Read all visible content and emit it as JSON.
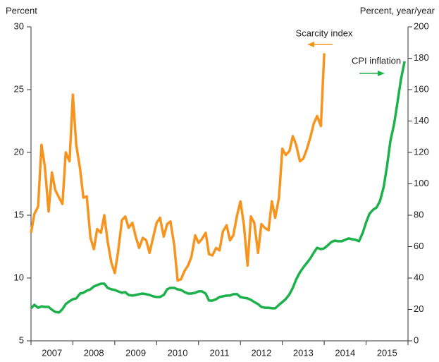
{
  "chart_data": {
    "type": "line",
    "y_label": "Percent",
    "y2_label": "Percent, year/year",
    "annotations": [
      "Scarcity index",
      "CPI inflation"
    ],
    "xlim": [
      2007,
      2016
    ],
    "xticks": [
      2007,
      2008,
      2009,
      2010,
      2011,
      2012,
      2013,
      2014,
      2015,
      2016
    ],
    "x_labels": [
      "2007",
      "2008",
      "2009",
      "2010",
      "2011",
      "2012",
      "2013",
      "2014",
      "2015"
    ],
    "ylim": [
      5,
      30
    ],
    "yticks": [
      5,
      10,
      15,
      20,
      25,
      30
    ],
    "y2lim": [
      0,
      200
    ],
    "y2ticks": [
      0,
      20,
      40,
      60,
      80,
      100,
      120,
      140,
      160,
      180,
      200
    ],
    "x": [
      2007,
      2007.08,
      2007.17,
      2007.25,
      2007.33,
      2007.42,
      2007.5,
      2007.58,
      2007.67,
      2007.75,
      2007.83,
      2007.92,
      2008,
      2008.08,
      2008.17,
      2008.25,
      2008.33,
      2008.42,
      2008.5,
      2008.58,
      2008.67,
      2008.75,
      2008.83,
      2008.92,
      2009,
      2009.08,
      2009.17,
      2009.25,
      2009.33,
      2009.42,
      2009.5,
      2009.58,
      2009.67,
      2009.75,
      2009.83,
      2009.92,
      2010,
      2010.08,
      2010.17,
      2010.25,
      2010.33,
      2010.42,
      2010.5,
      2010.58,
      2010.67,
      2010.75,
      2010.83,
      2010.92,
      2011,
      2011.08,
      2011.17,
      2011.25,
      2011.33,
      2011.42,
      2011.5,
      2011.58,
      2011.67,
      2011.75,
      2011.83,
      2011.92,
      2012,
      2012.08,
      2012.17,
      2012.25,
      2012.33,
      2012.42,
      2012.5,
      2012.58,
      2012.67,
      2012.75,
      2012.83,
      2012.92,
      2013,
      2013.08,
      2013.17,
      2013.25,
      2013.33,
      2013.42,
      2013.5,
      2013.58,
      2013.67,
      2013.75,
      2013.83,
      2013.92,
      2014,
      2014.08,
      2014.17,
      2014.25,
      2014.33,
      2014.42,
      2014.5,
      2014.58,
      2014.67,
      2014.75,
      2014.83,
      2014.92,
      2015,
      2015.08,
      2015.17,
      2015.25,
      2015.33,
      2015.42,
      2015.5,
      2015.58,
      2015.67,
      2015.75,
      2015.83,
      2015.92
    ],
    "series": [
      {
        "name": "Scarcity index",
        "color": "#f7941d",
        "axis": "y",
        "values": [
          13.6,
          15.1,
          15.7,
          20.6,
          18.9,
          15.3,
          18.4,
          17.0,
          16.4,
          15.9,
          20.0,
          19.3,
          24.6,
          20.6,
          18.7,
          16.4,
          16.5,
          13.2,
          12.3,
          13.9,
          13.6,
          15.0,
          12.9,
          11.2,
          10.4,
          12.1,
          14.6,
          14.9,
          14.0,
          14.4,
          13.3,
          12.4,
          13.2,
          13.0,
          12.0,
          13.3,
          14.4,
          14.8,
          13.3,
          14.3,
          14.5,
          12.6,
          9.8,
          9.9,
          10.6,
          11.0,
          11.7,
          13.4,
          12.8,
          13.1,
          13.6,
          11.9,
          11.8,
          12.4,
          12.2,
          13.7,
          14.2,
          13.0,
          13.4,
          15.0,
          16.1,
          14.3,
          11.0,
          14.9,
          14.4,
          12.0,
          14.3,
          14.0,
          13.8,
          16.1,
          14.8,
          16.4,
          20.3,
          19.8,
          20.1,
          21.3,
          20.6,
          19.3,
          19.5,
          20.2,
          21.2,
          22.3,
          22.9,
          22.1,
          27.9,
          null,
          null,
          null,
          null,
          null,
          null,
          null,
          null,
          null,
          null,
          null,
          null,
          null,
          null,
          null,
          null,
          null,
          null,
          null,
          null,
          null,
          null,
          null
        ]
      },
      {
        "name": "CPI inflation",
        "color": "#1db14b",
        "axis": "y2",
        "values": [
          20.7,
          22.9,
          21.1,
          22.0,
          21.6,
          21.6,
          19.8,
          18.4,
          18.0,
          20.2,
          23.4,
          25.2,
          26.5,
          27.0,
          30.1,
          30.6,
          31.9,
          32.8,
          34.6,
          35.5,
          36.4,
          36.4,
          33.7,
          32.8,
          32.4,
          31.5,
          30.6,
          31.0,
          29.2,
          28.8,
          29.2,
          29.7,
          30.1,
          29.7,
          29.2,
          28.3,
          27.9,
          27.9,
          29.2,
          32.8,
          33.7,
          33.7,
          32.8,
          32.4,
          31.0,
          30.1,
          30.1,
          30.6,
          31.5,
          31.5,
          30.1,
          25.6,
          25.6,
          26.5,
          27.9,
          28.3,
          28.8,
          28.8,
          29.7,
          29.7,
          27.9,
          27.4,
          27.0,
          26.1,
          24.7,
          23.4,
          21.6,
          21.1,
          21.1,
          20.7,
          20.7,
          22.9,
          24.7,
          26.5,
          29.7,
          33.7,
          39.1,
          43.6,
          46.7,
          49.4,
          52.6,
          56.2,
          59.3,
          58.4,
          58.9,
          60.7,
          62.9,
          63.8,
          63.4,
          63.4,
          64.3,
          65.2,
          64.7,
          64.3,
          63.4,
          68.8,
          75.5,
          80.9,
          83.6,
          84.9,
          89.0,
          98.0,
          111.5,
          127.2,
          138.4,
          151.9,
          166.3,
          178.0
        ]
      }
    ]
  }
}
